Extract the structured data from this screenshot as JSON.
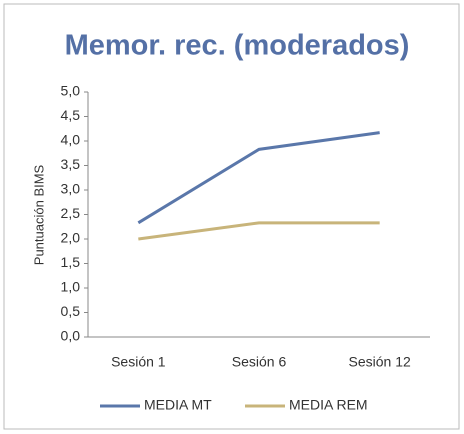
{
  "chart_data": {
    "type": "line",
    "title": "Memor. rec. (moderados)",
    "y_label": "Puntuación BIMS",
    "categories": [
      "Sesión 1",
      "Sesión 6",
      "Sesión 12"
    ],
    "series": [
      {
        "name": "MEDIA MT",
        "color": "#5a77aa",
        "values": [
          2.33,
          3.83,
          4.17
        ]
      },
      {
        "name": "MEDIA REM",
        "color": "#c8b47a",
        "values": [
          2.0,
          2.33,
          2.33
        ]
      }
    ],
    "ylim": [
      0,
      5
    ],
    "yticks": [
      {
        "value": 0,
        "label": "0,0"
      },
      {
        "value": 0.5,
        "label": "0,5"
      },
      {
        "value": 1,
        "label": "1,0"
      },
      {
        "value": 1.5,
        "label": "1,5"
      },
      {
        "value": 2,
        "label": "2,0"
      },
      {
        "value": 2.5,
        "label": "2,5"
      },
      {
        "value": 3,
        "label": "3,0"
      },
      {
        "value": 3.5,
        "label": "3,5"
      },
      {
        "value": 4,
        "label": "4,0"
      },
      {
        "value": 4.5,
        "label": "4,5"
      },
      {
        "value": 5,
        "label": "5,0"
      }
    ],
    "grid": false,
    "legend": "bottom"
  }
}
